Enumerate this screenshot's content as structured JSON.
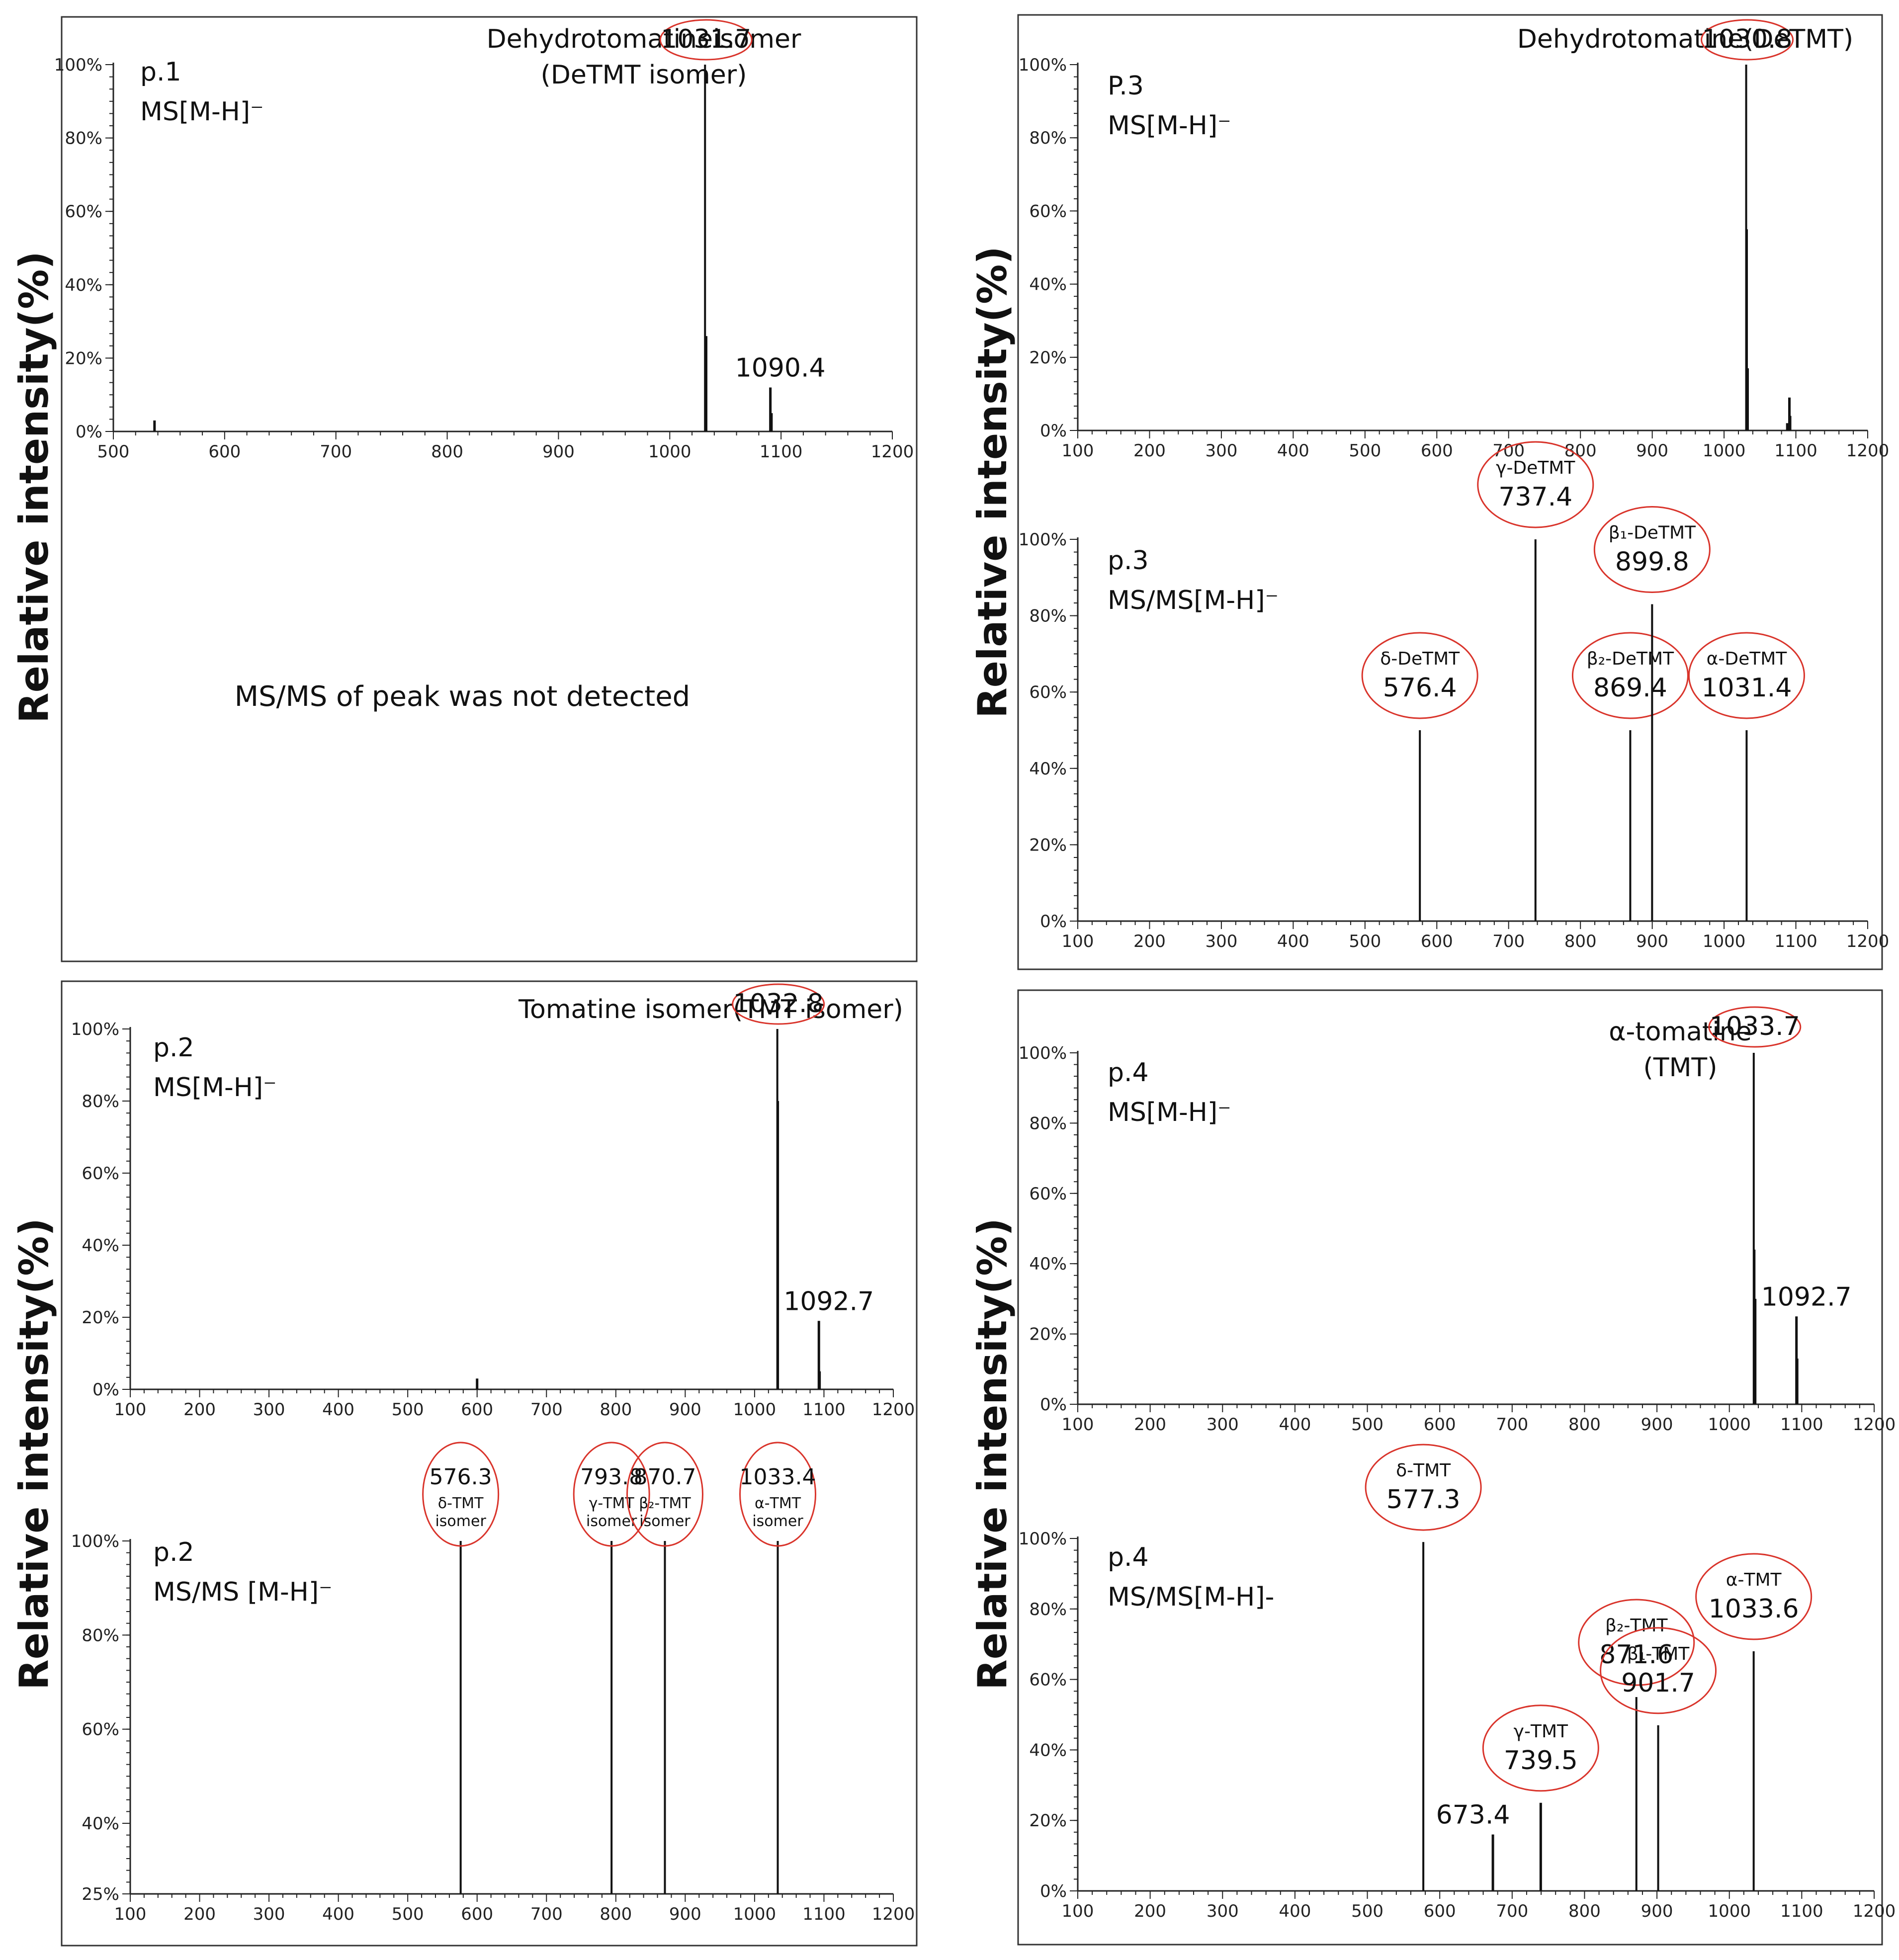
{
  "y_axis_label": "Relative intensity(%)",
  "colors": {
    "ellipse": "#d9342b",
    "frame": "#333333",
    "peak": "#111111"
  },
  "note_p1": "MS/MS of peak was not detected",
  "chart_data": [
    {
      "id": "p1-ms",
      "type": "bar",
      "panel_label": [
        "p.1",
        "MS[M-H]⁻"
      ],
      "title": [
        "Dehydrotomatineisomer",
        "(DeTMT isomer)"
      ],
      "xlim": [
        500,
        1200
      ],
      "ylim": [
        0,
        100
      ],
      "xticks": [
        500,
        600,
        700,
        800,
        900,
        1000,
        1100,
        1200
      ],
      "yticks": [
        0,
        20,
        40,
        60,
        80,
        100
      ],
      "peaks": [
        {
          "x": 537,
          "y": 3
        },
        {
          "x": 1031.7,
          "y": 100,
          "label": "1031.7",
          "circled": true
        },
        {
          "x": 1032.7,
          "y": 26
        },
        {
          "x": 1090.4,
          "y": 12,
          "label": "1090.4"
        },
        {
          "x": 1091.4,
          "y": 5
        }
      ]
    },
    {
      "id": "p3-ms",
      "type": "bar",
      "panel_label": [
        "P.3",
        "MS[M-H]⁻"
      ],
      "title": [
        "Dehydrotomatine(DeTMT)"
      ],
      "xlim": [
        100,
        1200
      ],
      "ylim": [
        0,
        100
      ],
      "xticks": [
        100,
        200,
        300,
        400,
        500,
        600,
        700,
        800,
        900,
        1000,
        1100,
        1200
      ],
      "yticks": [
        0,
        20,
        40,
        60,
        80,
        100
      ],
      "peaks": [
        {
          "x": 1030.8,
          "y": 100,
          "label": "1030.8",
          "circled": true
        },
        {
          "x": 1031.8,
          "y": 55
        },
        {
          "x": 1032.8,
          "y": 17
        },
        {
          "x": 1088,
          "y": 2
        },
        {
          "x": 1091,
          "y": 9
        },
        {
          "x": 1092,
          "y": 4
        }
      ]
    },
    {
      "id": "p3-msms",
      "type": "bar",
      "panel_label": [
        "p.3",
        "MS/MS[M-H]⁻"
      ],
      "xlim": [
        100,
        1200
      ],
      "ylim": [
        0,
        100
      ],
      "xticks": [
        100,
        200,
        300,
        400,
        500,
        600,
        700,
        800,
        900,
        1000,
        1100,
        1200
      ],
      "yticks": [
        0,
        20,
        40,
        60,
        80,
        100
      ],
      "peaks": [
        {
          "x": 576.4,
          "y": 50,
          "label": "576.4",
          "name": "δ-DeTMT",
          "circled": true
        },
        {
          "x": 737.4,
          "y": 100,
          "label": "737.4",
          "name": "γ-DeTMT",
          "circled": true
        },
        {
          "x": 869.4,
          "y": 50,
          "label": "869.4",
          "name": "β₂-DeTMT",
          "circled": true
        },
        {
          "x": 899.8,
          "y": 83,
          "label": "899.8",
          "name": "β₁-DeTMT",
          "circled": true
        },
        {
          "x": 1031.4,
          "y": 50,
          "label": "1031.4",
          "name": "α-DeTMT",
          "circled": true
        }
      ]
    },
    {
      "id": "p2-ms",
      "type": "bar",
      "panel_label": [
        "p.2",
        "MS[M-H]⁻"
      ],
      "title": [
        "Tomatine isomer(TMT isomer)"
      ],
      "xlim": [
        100,
        1200
      ],
      "ylim": [
        0,
        100
      ],
      "xticks": [
        100,
        200,
        300,
        400,
        500,
        600,
        700,
        800,
        900,
        1000,
        1100,
        1200
      ],
      "yticks": [
        0,
        20,
        40,
        60,
        80,
        100
      ],
      "peaks": [
        {
          "x": 600,
          "y": 3
        },
        {
          "x": 1032.8,
          "y": 100,
          "label": "1032.8",
          "circled": true
        },
        {
          "x": 1033.8,
          "y": 80
        },
        {
          "x": 1092.7,
          "y": 19,
          "label": "1092.7"
        },
        {
          "x": 1093.7,
          "y": 5
        }
      ]
    },
    {
      "id": "p2-msms",
      "type": "bar",
      "panel_label": [
        "p.2",
        "MS/MS [M-H]⁻"
      ],
      "xlim": [
        100,
        1200
      ],
      "ylim": [
        25,
        100
      ],
      "xticks": [
        100,
        200,
        300,
        400,
        500,
        600,
        700,
        800,
        900,
        1000,
        1100,
        1200
      ],
      "yticks": [
        25,
        40,
        60,
        80,
        100
      ],
      "ytick_labels": [
        "25%",
        "40%",
        "60%",
        "80%",
        "100%"
      ],
      "peaks": [
        {
          "x": 576.3,
          "y": 100,
          "label": "576.3",
          "name": "δ-TMT",
          "name2": "isomer",
          "circled": true,
          "style": "small"
        },
        {
          "x": 793.8,
          "y": 100,
          "label": "793.8",
          "name": "γ-TMT",
          "name2": "isomer",
          "circled": true,
          "style": "small"
        },
        {
          "x": 870.7,
          "y": 100,
          "label": "870.7",
          "name": "β₂-TMT",
          "name2": "isomer",
          "circled": true,
          "style": "small"
        },
        {
          "x": 1033.4,
          "y": 100,
          "label": "1033.4",
          "name": "α-TMT",
          "name2": "isomer",
          "circled": true,
          "style": "small"
        }
      ]
    },
    {
      "id": "p4-ms",
      "type": "bar",
      "panel_label": [
        "p.4",
        "MS[M-H]⁻"
      ],
      "title": [
        "α-tomatine",
        "(TMT)"
      ],
      "xlim": [
        100,
        1200
      ],
      "ylim": [
        0,
        100
      ],
      "xticks": [
        100,
        200,
        300,
        400,
        500,
        600,
        700,
        800,
        900,
        1000,
        1100,
        1200
      ],
      "yticks": [
        0,
        20,
        40,
        60,
        80,
        100
      ],
      "peaks": [
        {
          "x": 1033.7,
          "y": 100,
          "label": "1033.7",
          "circled": true
        },
        {
          "x": 1034.7,
          "y": 44
        },
        {
          "x": 1035.7,
          "y": 30
        },
        {
          "x": 1092.7,
          "y": 25,
          "label": "1092.7"
        },
        {
          "x": 1093.7,
          "y": 13
        }
      ]
    },
    {
      "id": "p4-msms",
      "type": "bar",
      "panel_label": [
        "p.4",
        "MS/MS[M-H]-"
      ],
      "xlim": [
        100,
        1200
      ],
      "ylim": [
        0,
        100
      ],
      "xticks": [
        100,
        200,
        300,
        400,
        500,
        600,
        700,
        800,
        900,
        1000,
        1100,
        1200
      ],
      "yticks": [
        0,
        20,
        40,
        60,
        80,
        100
      ],
      "peaks": [
        {
          "x": 577.3,
          "y": 99,
          "label": "577.3",
          "name": "δ-TMT",
          "circled": true
        },
        {
          "x": 673.4,
          "y": 16,
          "label": "673.4"
        },
        {
          "x": 739.5,
          "y": 25,
          "label": "739.5",
          "name": "γ-TMT",
          "circled": true
        },
        {
          "x": 871.6,
          "y": 55,
          "label": "871.6",
          "name": "β₂-TMT",
          "circled": true
        },
        {
          "x": 901.7,
          "y": 47,
          "label": "901.7",
          "name": "β₁-TMT",
          "circled": true
        },
        {
          "x": 1033.6,
          "y": 68,
          "label": "1033.6",
          "name": "α-TMT",
          "circled": true
        }
      ]
    }
  ]
}
